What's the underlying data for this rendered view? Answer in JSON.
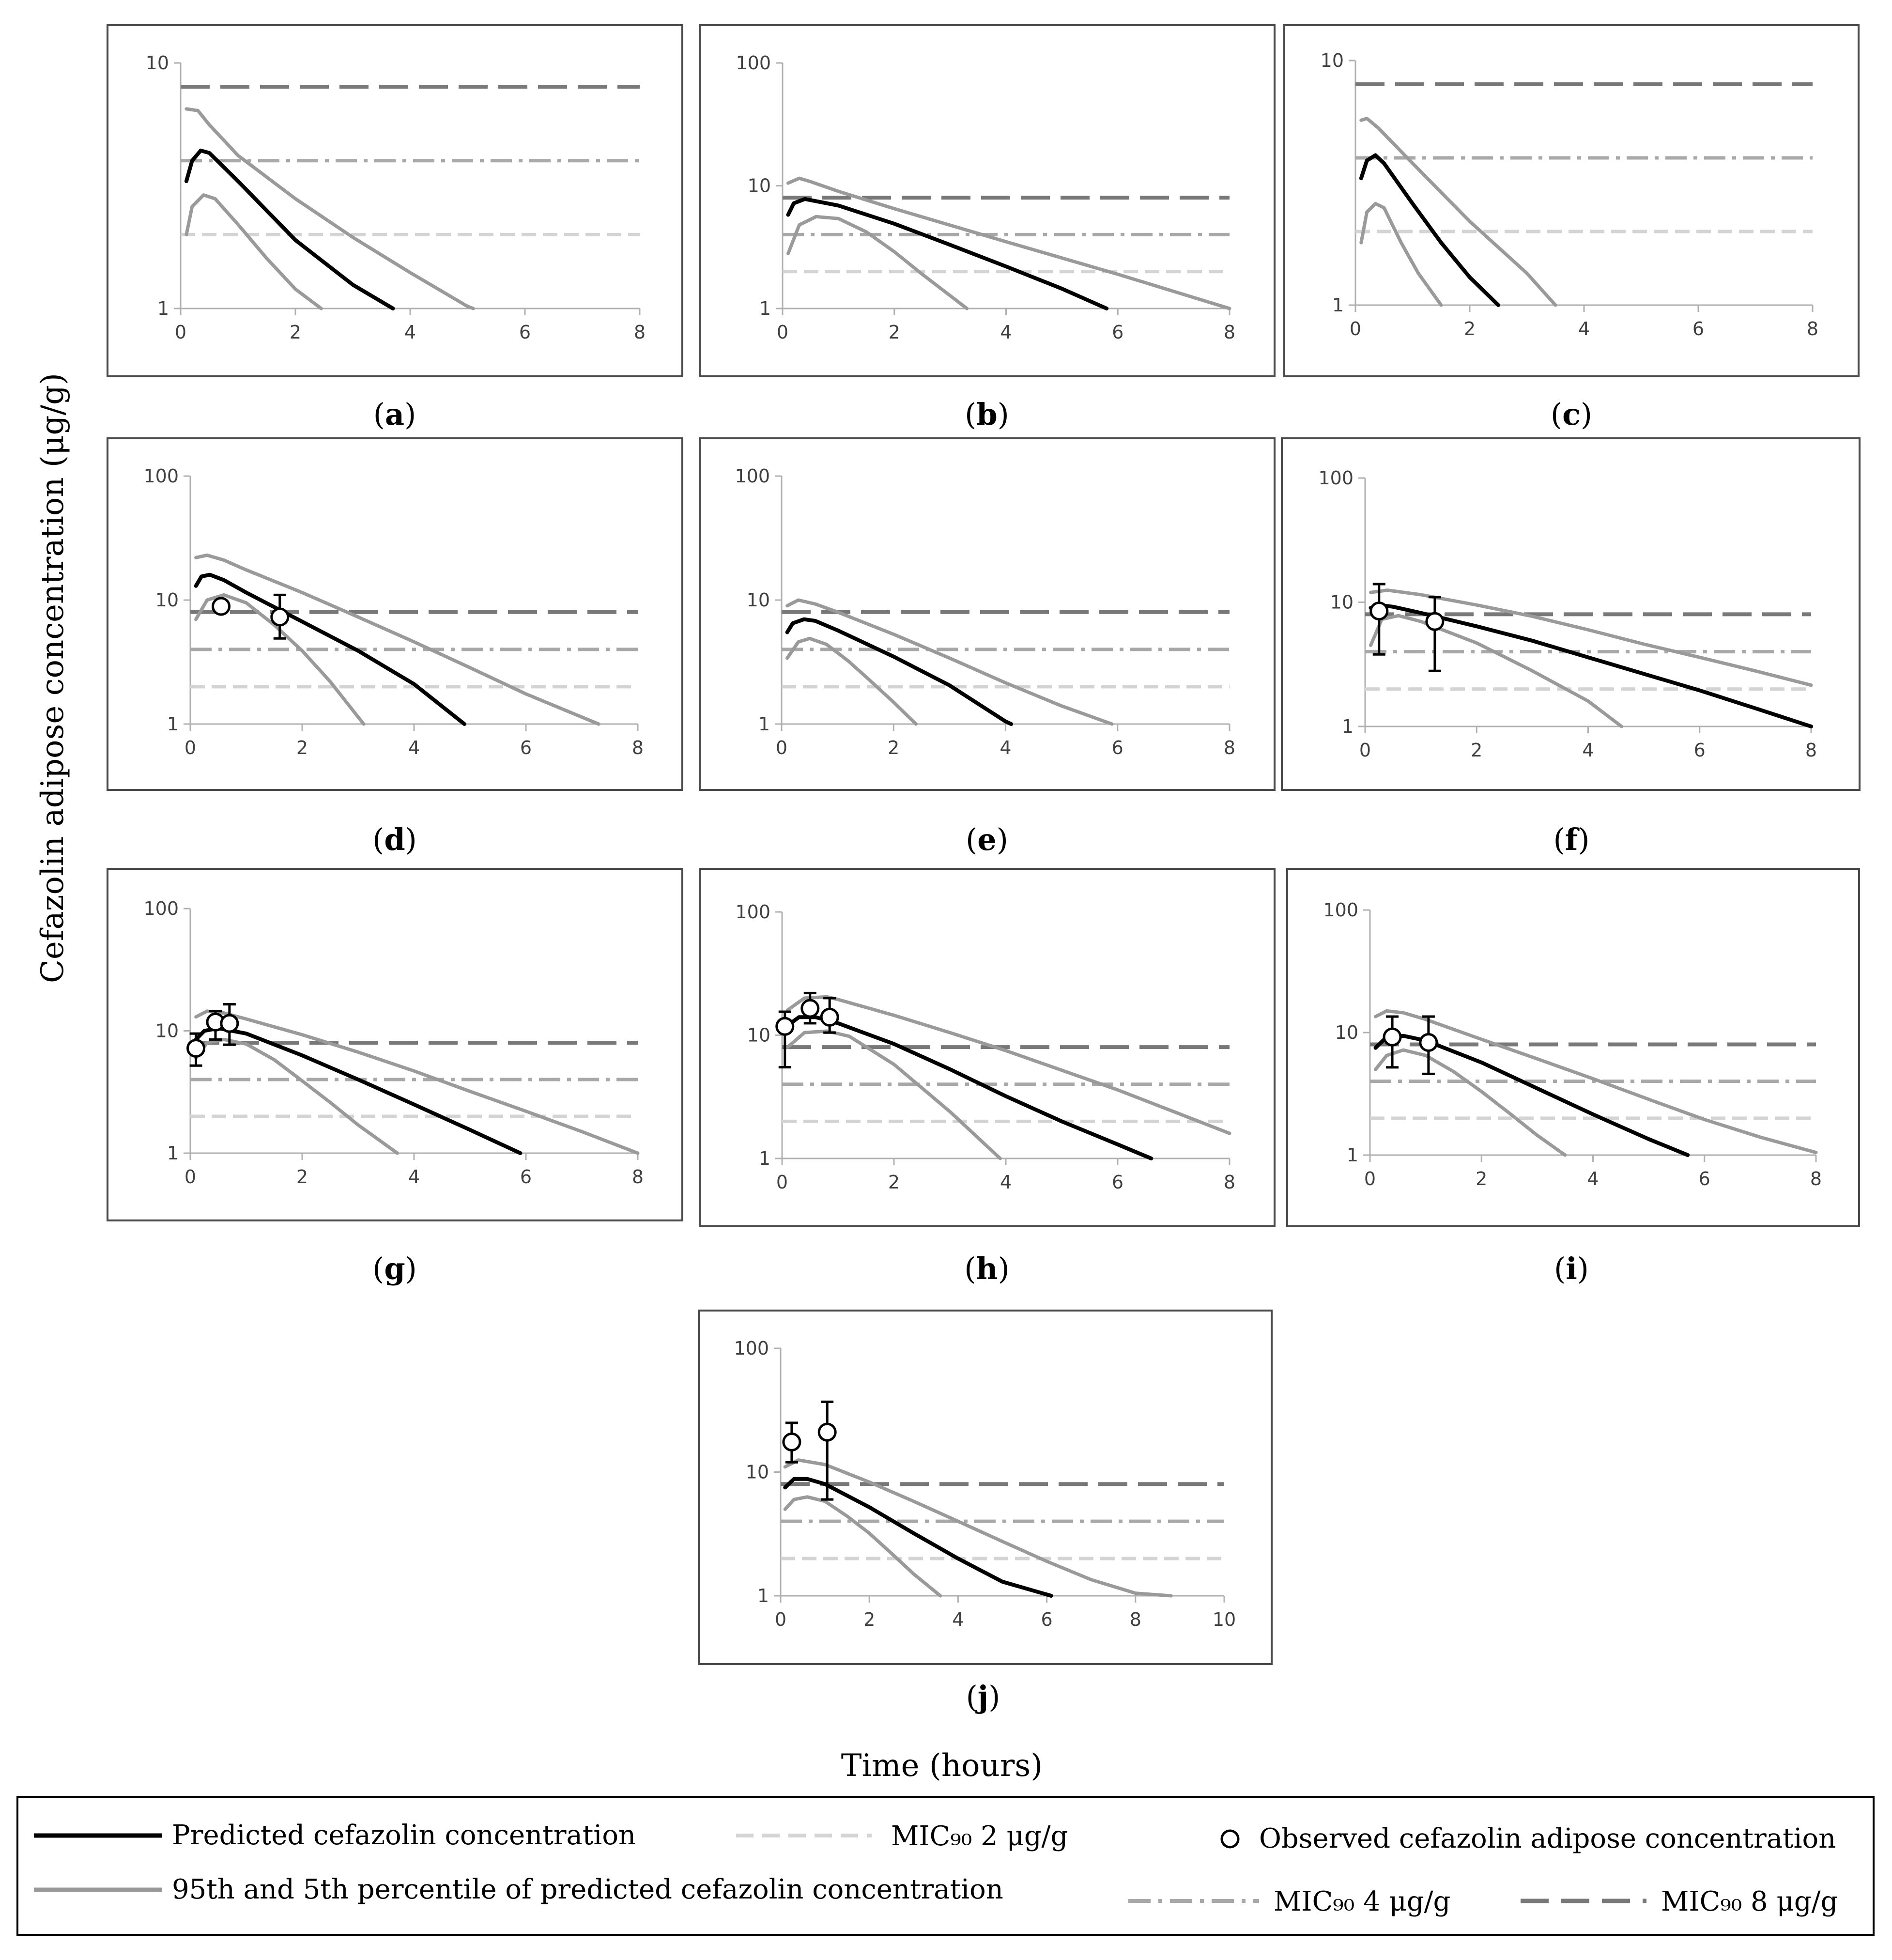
{
  "figure": {
    "y_axis_label": "Cefazolin adipose concentration (μg/g)",
    "x_axis_label": "Time (hours)"
  },
  "colors": {
    "predicted": "#000000",
    "percentile": "#9a9a9a",
    "mic2": "#d4d4d4",
    "mic4": "#a8a8a8",
    "mic8": "#787878",
    "frame": "#4a4a4a",
    "axis": "#b0b0b0",
    "tick_text": "#404040"
  },
  "legend": {
    "predicted": "Predicted cefazolin concentration",
    "percentile": "95th and 5th percentile of predicted cefazolin concentration",
    "mic2": "MIC₉₀ 2 μg/g",
    "mic4": "MIC₉₀ 4 μg/g",
    "mic8": "MIC₉₀ 8 μg/g",
    "observed": "Observed cefazolin adipose concentration"
  },
  "chart_data": [
    {
      "panel": "(a)",
      "type": "line",
      "xlim": [
        0,
        8
      ],
      "ylim": [
        1,
        10
      ],
      "yscale": "log",
      "xticks": [
        "0",
        "2",
        "4",
        "6",
        "8"
      ],
      "yticks": [
        "1",
        "10"
      ],
      "mic": [
        2,
        4,
        8
      ],
      "series": [
        {
          "name": "predicted",
          "x": [
            0.1,
            0.2,
            0.35,
            0.5,
            1,
            2,
            3,
            3.7
          ],
          "y": [
            3.3,
            4.0,
            4.4,
            4.3,
            3.3,
            1.9,
            1.25,
            1.0
          ]
        },
        {
          "name": "p95",
          "x": [
            0.1,
            0.3,
            0.5,
            1,
            2,
            3,
            4,
            5,
            5.1
          ],
          "y": [
            6.5,
            6.4,
            5.6,
            4.2,
            2.8,
            1.95,
            1.4,
            1.02,
            1.0
          ]
        },
        {
          "name": "p5",
          "x": [
            0.1,
            0.2,
            0.4,
            0.6,
            1,
            1.5,
            2,
            2.45
          ],
          "y": [
            2.0,
            2.6,
            2.9,
            2.8,
            2.2,
            1.6,
            1.2,
            1.0
          ]
        }
      ],
      "observed": []
    },
    {
      "panel": "(b)",
      "type": "line",
      "xlim": [
        0,
        8
      ],
      "ylim": [
        1,
        100
      ],
      "yscale": "log",
      "xticks": [
        "0",
        "2",
        "4",
        "6",
        "8"
      ],
      "yticks": [
        "1",
        "10",
        "100"
      ],
      "mic": [
        2,
        4,
        8
      ],
      "series": [
        {
          "name": "predicted",
          "x": [
            0.1,
            0.2,
            0.4,
            1,
            2,
            3,
            4,
            5,
            5.8
          ],
          "y": [
            5.8,
            7.2,
            7.8,
            6.9,
            4.9,
            3.3,
            2.2,
            1.45,
            1.0
          ]
        },
        {
          "name": "p95",
          "x": [
            0.1,
            0.3,
            0.5,
            1,
            2,
            4,
            6,
            8
          ],
          "y": [
            10.5,
            11.5,
            10.8,
            9.0,
            6.5,
            3.5,
            1.9,
            1.0
          ]
        },
        {
          "name": "p5",
          "x": [
            0.1,
            0.3,
            0.6,
            1,
            1.5,
            2,
            2.5,
            3.3
          ],
          "y": [
            2.8,
            4.8,
            5.6,
            5.4,
            4.2,
            2.9,
            1.9,
            1.0
          ]
        }
      ],
      "observed": []
    },
    {
      "panel": "(c)",
      "type": "line",
      "xlim": [
        0,
        8
      ],
      "ylim": [
        1,
        10
      ],
      "yscale": "log",
      "xticks": [
        "0",
        "2",
        "4",
        "6",
        "8"
      ],
      "yticks": [
        "1",
        "10"
      ],
      "mic": [
        2,
        4,
        8
      ],
      "series": [
        {
          "name": "predicted",
          "x": [
            0.1,
            0.2,
            0.35,
            0.5,
            1,
            1.5,
            2,
            2.5
          ],
          "y": [
            3.3,
            3.9,
            4.1,
            3.8,
            2.6,
            1.8,
            1.3,
            1.0
          ]
        },
        {
          "name": "p95",
          "x": [
            0.1,
            0.2,
            0.4,
            1,
            2,
            3,
            3.5
          ],
          "y": [
            5.7,
            5.8,
            5.3,
            3.8,
            2.2,
            1.35,
            1.0
          ]
        },
        {
          "name": "p5",
          "x": [
            0.1,
            0.2,
            0.35,
            0.5,
            0.8,
            1.1,
            1.5
          ],
          "y": [
            1.8,
            2.4,
            2.6,
            2.5,
            1.8,
            1.35,
            1.0
          ]
        }
      ],
      "observed": []
    },
    {
      "panel": "(d)",
      "type": "line",
      "xlim": [
        0,
        8
      ],
      "ylim": [
        1,
        100
      ],
      "yscale": "log",
      "xticks": [
        "0",
        "2",
        "4",
        "6",
        "8"
      ],
      "yticks": [
        "1",
        "10",
        "100"
      ],
      "mic": [
        2,
        4,
        8
      ],
      "series": [
        {
          "name": "predicted",
          "x": [
            0.1,
            0.2,
            0.35,
            0.6,
            1,
            2,
            3,
            4,
            4.9
          ],
          "y": [
            13,
            15.5,
            16,
            14.5,
            11.5,
            6.7,
            3.9,
            2.1,
            1.0
          ]
        },
        {
          "name": "p95",
          "x": [
            0.1,
            0.3,
            0.6,
            1,
            2,
            3,
            4,
            5,
            6,
            7.3
          ],
          "y": [
            22,
            23,
            21,
            17.5,
            11.5,
            7.3,
            4.6,
            2.85,
            1.75,
            1.0
          ]
        },
        {
          "name": "p5",
          "x": [
            0.1,
            0.3,
            0.6,
            1.0,
            1.5,
            2,
            2.5,
            3.1
          ],
          "y": [
            7.0,
            10,
            11,
            9.5,
            6.3,
            3.9,
            2.2,
            1.0
          ]
        }
      ],
      "observed": [
        {
          "x": 0.55,
          "y": 8.9,
          "lo": 8.9,
          "hi": 8.9
        },
        {
          "x": 1.6,
          "y": 7.3,
          "lo": 4.9,
          "hi": 11
        }
      ]
    },
    {
      "panel": "(e)",
      "type": "line",
      "xlim": [
        0,
        8
      ],
      "ylim": [
        1,
        100
      ],
      "yscale": "log",
      "xticks": [
        "0",
        "2",
        "4",
        "6",
        "8"
      ],
      "yticks": [
        "1",
        "10",
        "100"
      ],
      "mic": [
        2,
        4,
        8
      ],
      "series": [
        {
          "name": "predicted",
          "x": [
            0.1,
            0.2,
            0.4,
            0.6,
            1,
            2,
            3,
            4,
            4.1
          ],
          "y": [
            5.5,
            6.5,
            7.0,
            6.8,
            5.7,
            3.5,
            2.05,
            1.05,
            1.0
          ]
        },
        {
          "name": "p95",
          "x": [
            0.1,
            0.3,
            0.6,
            1,
            2,
            3,
            4,
            5,
            5.9
          ],
          "y": [
            9.0,
            10,
            9.3,
            8.0,
            5.3,
            3.4,
            2.15,
            1.4,
            1.0
          ]
        },
        {
          "name": "p5",
          "x": [
            0.1,
            0.3,
            0.5,
            0.8,
            1.2,
            1.6,
            2,
            2.4
          ],
          "y": [
            3.4,
            4.6,
            4.9,
            4.4,
            3.2,
            2.2,
            1.5,
            1.0
          ]
        }
      ],
      "observed": []
    },
    {
      "panel": "(f)",
      "type": "line",
      "xlim": [
        0,
        8
      ],
      "ylim": [
        1,
        100
      ],
      "yscale": "log",
      "xticks": [
        "0",
        "2",
        "4",
        "6",
        "8"
      ],
      "yticks": [
        "1",
        "10",
        "100"
      ],
      "mic": [
        2,
        4,
        8
      ],
      "series": [
        {
          "name": "predicted",
          "x": [
            0.1,
            0.25,
            0.5,
            1,
            2,
            3,
            4,
            5,
            6,
            7,
            8
          ],
          "y": [
            9.0,
            9.5,
            9.2,
            8.2,
            6.4,
            4.9,
            3.6,
            2.65,
            1.95,
            1.4,
            1.0
          ]
        },
        {
          "name": "p95",
          "x": [
            0.1,
            0.4,
            1,
            2,
            3,
            4,
            5,
            6,
            7,
            8
          ],
          "y": [
            12,
            12.5,
            11.5,
            9.5,
            7.7,
            6.0,
            4.6,
            3.6,
            2.8,
            2.15
          ]
        },
        {
          "name": "p5",
          "x": [
            0.1,
            0.3,
            0.6,
            1,
            2,
            3,
            4,
            4.6
          ],
          "y": [
            4.5,
            7.3,
            7.8,
            7.0,
            4.7,
            2.8,
            1.6,
            1.0
          ]
        }
      ],
      "observed": [
        {
          "x": 0.25,
          "y": 8.5,
          "lo": 3.8,
          "hi": 14
        },
        {
          "x": 1.25,
          "y": 7.0,
          "lo": 2.8,
          "hi": 11
        }
      ]
    },
    {
      "panel": "(g)",
      "type": "line",
      "xlim": [
        0,
        8
      ],
      "ylim": [
        1,
        100
      ],
      "yscale": "log",
      "xticks": [
        "0",
        "2",
        "4",
        "6",
        "8"
      ],
      "yticks": [
        "1",
        "10",
        "100"
      ],
      "mic": [
        2,
        4,
        8
      ],
      "series": [
        {
          "name": "predicted",
          "x": [
            0.1,
            0.25,
            0.5,
            1,
            2,
            3,
            4,
            5,
            5.9
          ],
          "y": [
            8.5,
            10,
            10.5,
            9.5,
            6.3,
            4.0,
            2.5,
            1.55,
            1.0
          ]
        },
        {
          "name": "p95",
          "x": [
            0.1,
            0.3,
            0.6,
            1,
            2,
            3,
            4,
            5,
            6,
            7,
            8
          ],
          "y": [
            13,
            14.5,
            14,
            12.5,
            9.3,
            6.7,
            4.7,
            3.2,
            2.2,
            1.5,
            1.0
          ]
        },
        {
          "name": "p5",
          "x": [
            0.1,
            0.3,
            0.6,
            1,
            1.5,
            2,
            2.5,
            3,
            3.7
          ],
          "y": [
            6.0,
            8.0,
            8.5,
            7.8,
            5.8,
            3.9,
            2.6,
            1.7,
            1.0
          ]
        }
      ],
      "observed": [
        {
          "x": 0.1,
          "y": 7.2,
          "lo": 5.2,
          "hi": 9.5
        },
        {
          "x": 0.45,
          "y": 11.8,
          "lo": 8.5,
          "hi": 14.5
        },
        {
          "x": 0.7,
          "y": 11.5,
          "lo": 7.7,
          "hi": 16.5
        }
      ]
    },
    {
      "panel": "(h)",
      "type": "line",
      "xlim": [
        0,
        8
      ],
      "ylim": [
        1,
        100
      ],
      "yscale": "log",
      "xticks": [
        "0",
        "2",
        "4",
        "6",
        "8"
      ],
      "yticks": [
        "1",
        "10",
        "100"
      ],
      "mic": [
        2,
        4,
        8
      ],
      "series": [
        {
          "name": "predicted",
          "x": [
            0.1,
            0.3,
            0.6,
            1,
            2,
            3,
            4,
            5,
            6,
            6.6
          ],
          "y": [
            12,
            14,
            14,
            12.5,
            8.5,
            5.3,
            3.2,
            2.0,
            1.3,
            1.0
          ]
        },
        {
          "name": "p95",
          "x": [
            0.1,
            0.4,
            0.8,
            1,
            2,
            3,
            4,
            5,
            6,
            7,
            8
          ],
          "y": [
            16,
            20,
            20.5,
            19.5,
            14.5,
            10.5,
            7.5,
            5.2,
            3.6,
            2.4,
            1.6
          ]
        },
        {
          "name": "p5",
          "x": [
            0.1,
            0.4,
            0.8,
            1.2,
            2,
            3,
            3.9
          ],
          "y": [
            8.0,
            10.5,
            10.8,
            9.8,
            5.8,
            2.4,
            1.0
          ]
        }
      ],
      "observed": [
        {
          "x": 0.05,
          "y": 11.8,
          "lo": 5.5,
          "hi": 15.5
        },
        {
          "x": 0.5,
          "y": 16.5,
          "lo": 12.5,
          "hi": 22
        },
        {
          "x": 0.85,
          "y": 14,
          "lo": 10.5,
          "hi": 20
        }
      ]
    },
    {
      "panel": "(i)",
      "type": "line",
      "xlim": [
        0,
        8
      ],
      "ylim": [
        1,
        100
      ],
      "yscale": "log",
      "xticks": [
        "0",
        "2",
        "4",
        "6",
        "8"
      ],
      "yticks": [
        "1",
        "10",
        "100"
      ],
      "mic": [
        2,
        4,
        8
      ],
      "series": [
        {
          "name": "predicted",
          "x": [
            0.1,
            0.3,
            0.6,
            1,
            2,
            3,
            4,
            5,
            5.7
          ],
          "y": [
            7.5,
            9.2,
            9.4,
            8.6,
            5.7,
            3.5,
            2.15,
            1.35,
            1.0
          ]
        },
        {
          "name": "p95",
          "x": [
            0.1,
            0.3,
            0.6,
            1,
            2,
            3,
            4,
            5,
            6,
            7,
            8
          ],
          "y": [
            13.5,
            15,
            14.5,
            12.8,
            8.8,
            6.1,
            4.2,
            2.85,
            1.95,
            1.4,
            1.05
          ]
        },
        {
          "name": "p5",
          "x": [
            0.1,
            0.3,
            0.6,
            1,
            1.5,
            2,
            2.5,
            3,
            3.5
          ],
          "y": [
            5.0,
            6.5,
            7.2,
            6.5,
            4.8,
            3.3,
            2.2,
            1.45,
            1.0
          ]
        }
      ],
      "observed": [
        {
          "x": 0.4,
          "y": 9.2,
          "lo": 5.2,
          "hi": 13.5
        },
        {
          "x": 1.05,
          "y": 8.3,
          "lo": 4.6,
          "hi": 13.5
        }
      ]
    },
    {
      "panel": "(j)",
      "type": "line",
      "xlim": [
        0,
        10
      ],
      "ylim": [
        1,
        100
      ],
      "yscale": "log",
      "xticks": [
        "0",
        "2",
        "4",
        "6",
        "8",
        "10"
      ],
      "yticks": [
        "1",
        "10",
        "100"
      ],
      "mic": [
        2,
        4,
        8
      ],
      "series": [
        {
          "name": "predicted",
          "x": [
            0.1,
            0.3,
            0.6,
            1,
            2,
            3,
            4,
            5,
            6.1
          ],
          "y": [
            7.5,
            8.8,
            8.8,
            8.0,
            5.2,
            3.2,
            2.0,
            1.3,
            1.0
          ]
        },
        {
          "name": "p95",
          "x": [
            0.1,
            0.4,
            1,
            2,
            3,
            4,
            5,
            6,
            7,
            8,
            8.8
          ],
          "y": [
            11,
            12.5,
            11.5,
            8.3,
            5.8,
            4.0,
            2.75,
            1.9,
            1.35,
            1.05,
            1.0
          ]
        },
        {
          "name": "p5",
          "x": [
            0.1,
            0.3,
            0.6,
            1,
            1.5,
            2,
            2.5,
            3,
            3.6
          ],
          "y": [
            5.0,
            6.0,
            6.3,
            5.8,
            4.4,
            3.2,
            2.2,
            1.5,
            1.0
          ]
        }
      ],
      "observed": [
        {
          "x": 0.25,
          "y": 17.5,
          "lo": 12,
          "hi": 25
        },
        {
          "x": 1.05,
          "y": 21,
          "lo": 6,
          "hi": 37
        }
      ]
    }
  ]
}
